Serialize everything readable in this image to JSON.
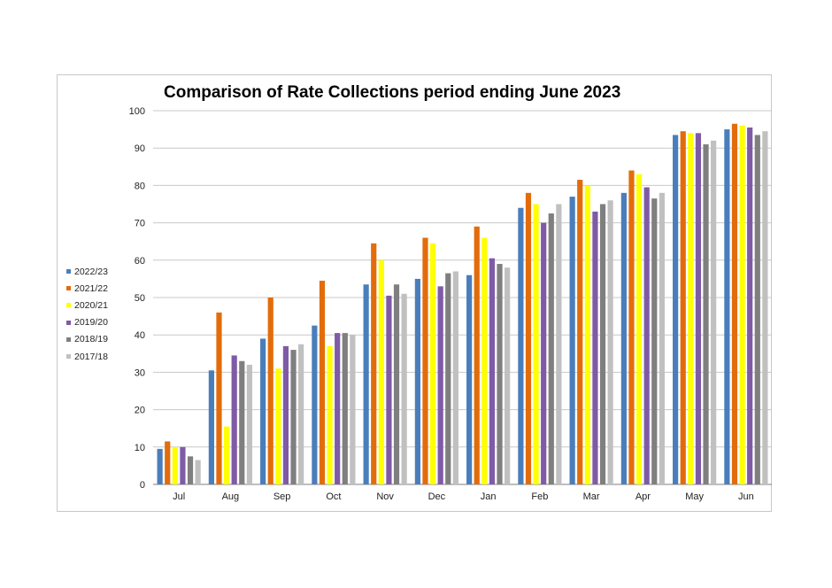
{
  "chart_data": {
    "type": "bar",
    "title": "Comparison of Rate Collections period ending June 2023",
    "xlabel": "",
    "ylabel": "",
    "ylim": [
      0,
      100
    ],
    "yticks": [
      0,
      10,
      20,
      30,
      40,
      50,
      60,
      70,
      80,
      90,
      100
    ],
    "grid": true,
    "legend_position": "left",
    "categories": [
      "Jul",
      "Aug",
      "Sep",
      "Oct",
      "Nov",
      "Dec",
      "Jan",
      "Feb",
      "Mar",
      "Apr",
      "May",
      "Jun"
    ],
    "series": [
      {
        "name": "2022/23",
        "color": "#4a7ebb",
        "values": [
          9.5,
          30.5,
          39,
          42.5,
          53.5,
          55,
          56,
          74,
          77,
          78,
          93.5,
          95
        ]
      },
      {
        "name": "2021/22",
        "color": "#e36c0a",
        "values": [
          11.5,
          46,
          50,
          54.5,
          64.5,
          66,
          69,
          78,
          81.5,
          84,
          94.5,
          96.5
        ]
      },
      {
        "name": "2020/21",
        "color": "#ffff00",
        "values": [
          10,
          15.5,
          31,
          37,
          60,
          64.5,
          66,
          75,
          80,
          83,
          94,
          96
        ]
      },
      {
        "name": "2019/20",
        "color": "#7f5ba6",
        "values": [
          10,
          34.5,
          37,
          40.5,
          50.5,
          53,
          60.5,
          70,
          73,
          79.5,
          94,
          95.5
        ]
      },
      {
        "name": "2018/19",
        "color": "#7f7f7f",
        "values": [
          7.5,
          33,
          36,
          40.5,
          53.5,
          56.5,
          59,
          72.5,
          75,
          76.5,
          91,
          93.5
        ]
      },
      {
        "name": "2017/18",
        "color": "#c0c0c0",
        "values": [
          6.5,
          32,
          37.5,
          40,
          51,
          57,
          58,
          75,
          76,
          78,
          92,
          94.5
        ]
      }
    ]
  }
}
